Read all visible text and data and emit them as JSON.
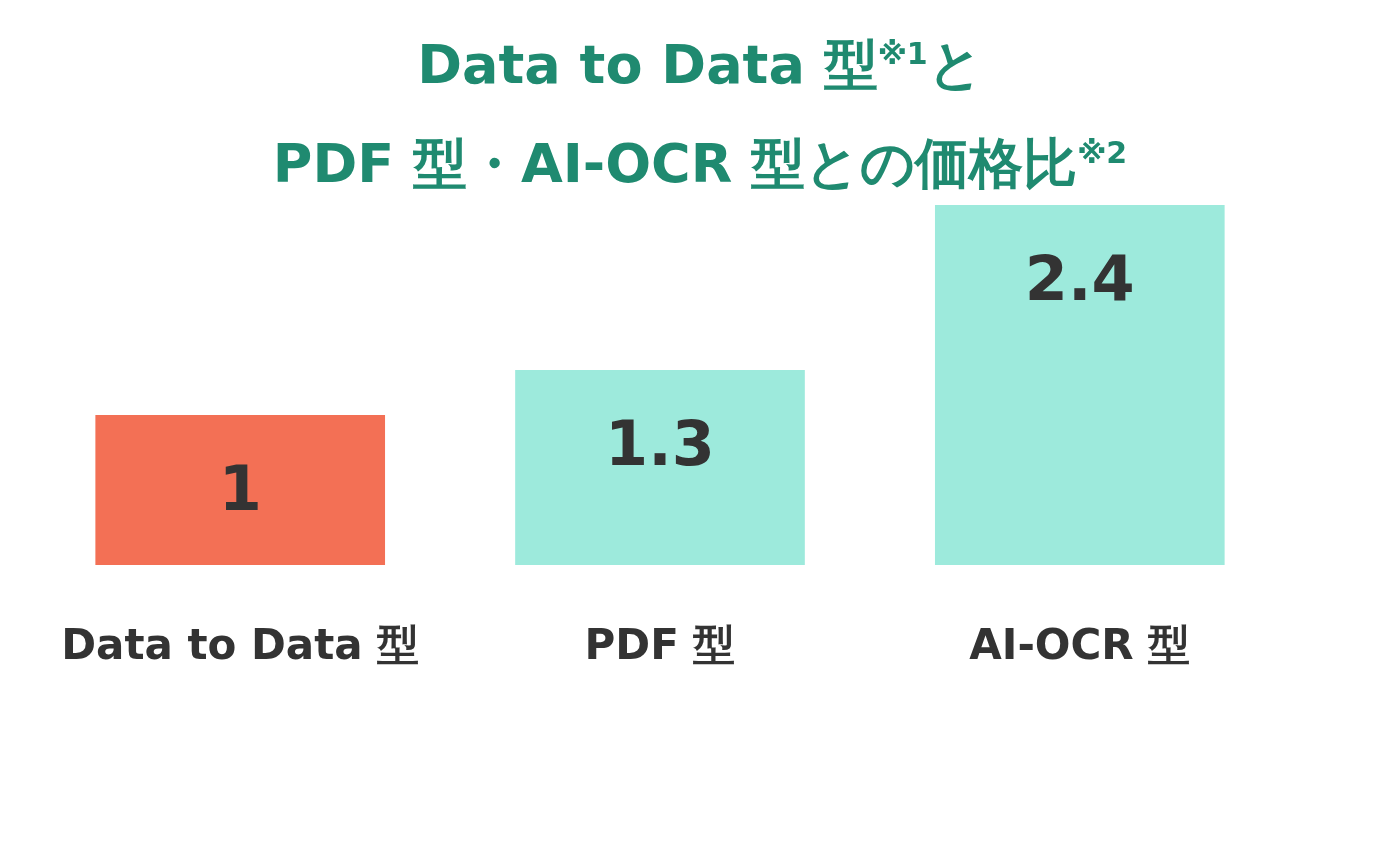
{
  "chart_data": {
    "type": "bar",
    "title": "Data to Data 型$^{※1}$と\nPDF 型・AI-OCR 型との価格比$^{※2}$",
    "categories": [
      "Data to Data 型",
      "PDF 型",
      "AI-OCR 型"
    ],
    "values": [
      1,
      1.3,
      2.4
    ],
    "colors": [
      "#f37055",
      "#9deadc",
      "#9deadc"
    ],
    "data_labels": true,
    "grid": false,
    "legend": false
  }
}
